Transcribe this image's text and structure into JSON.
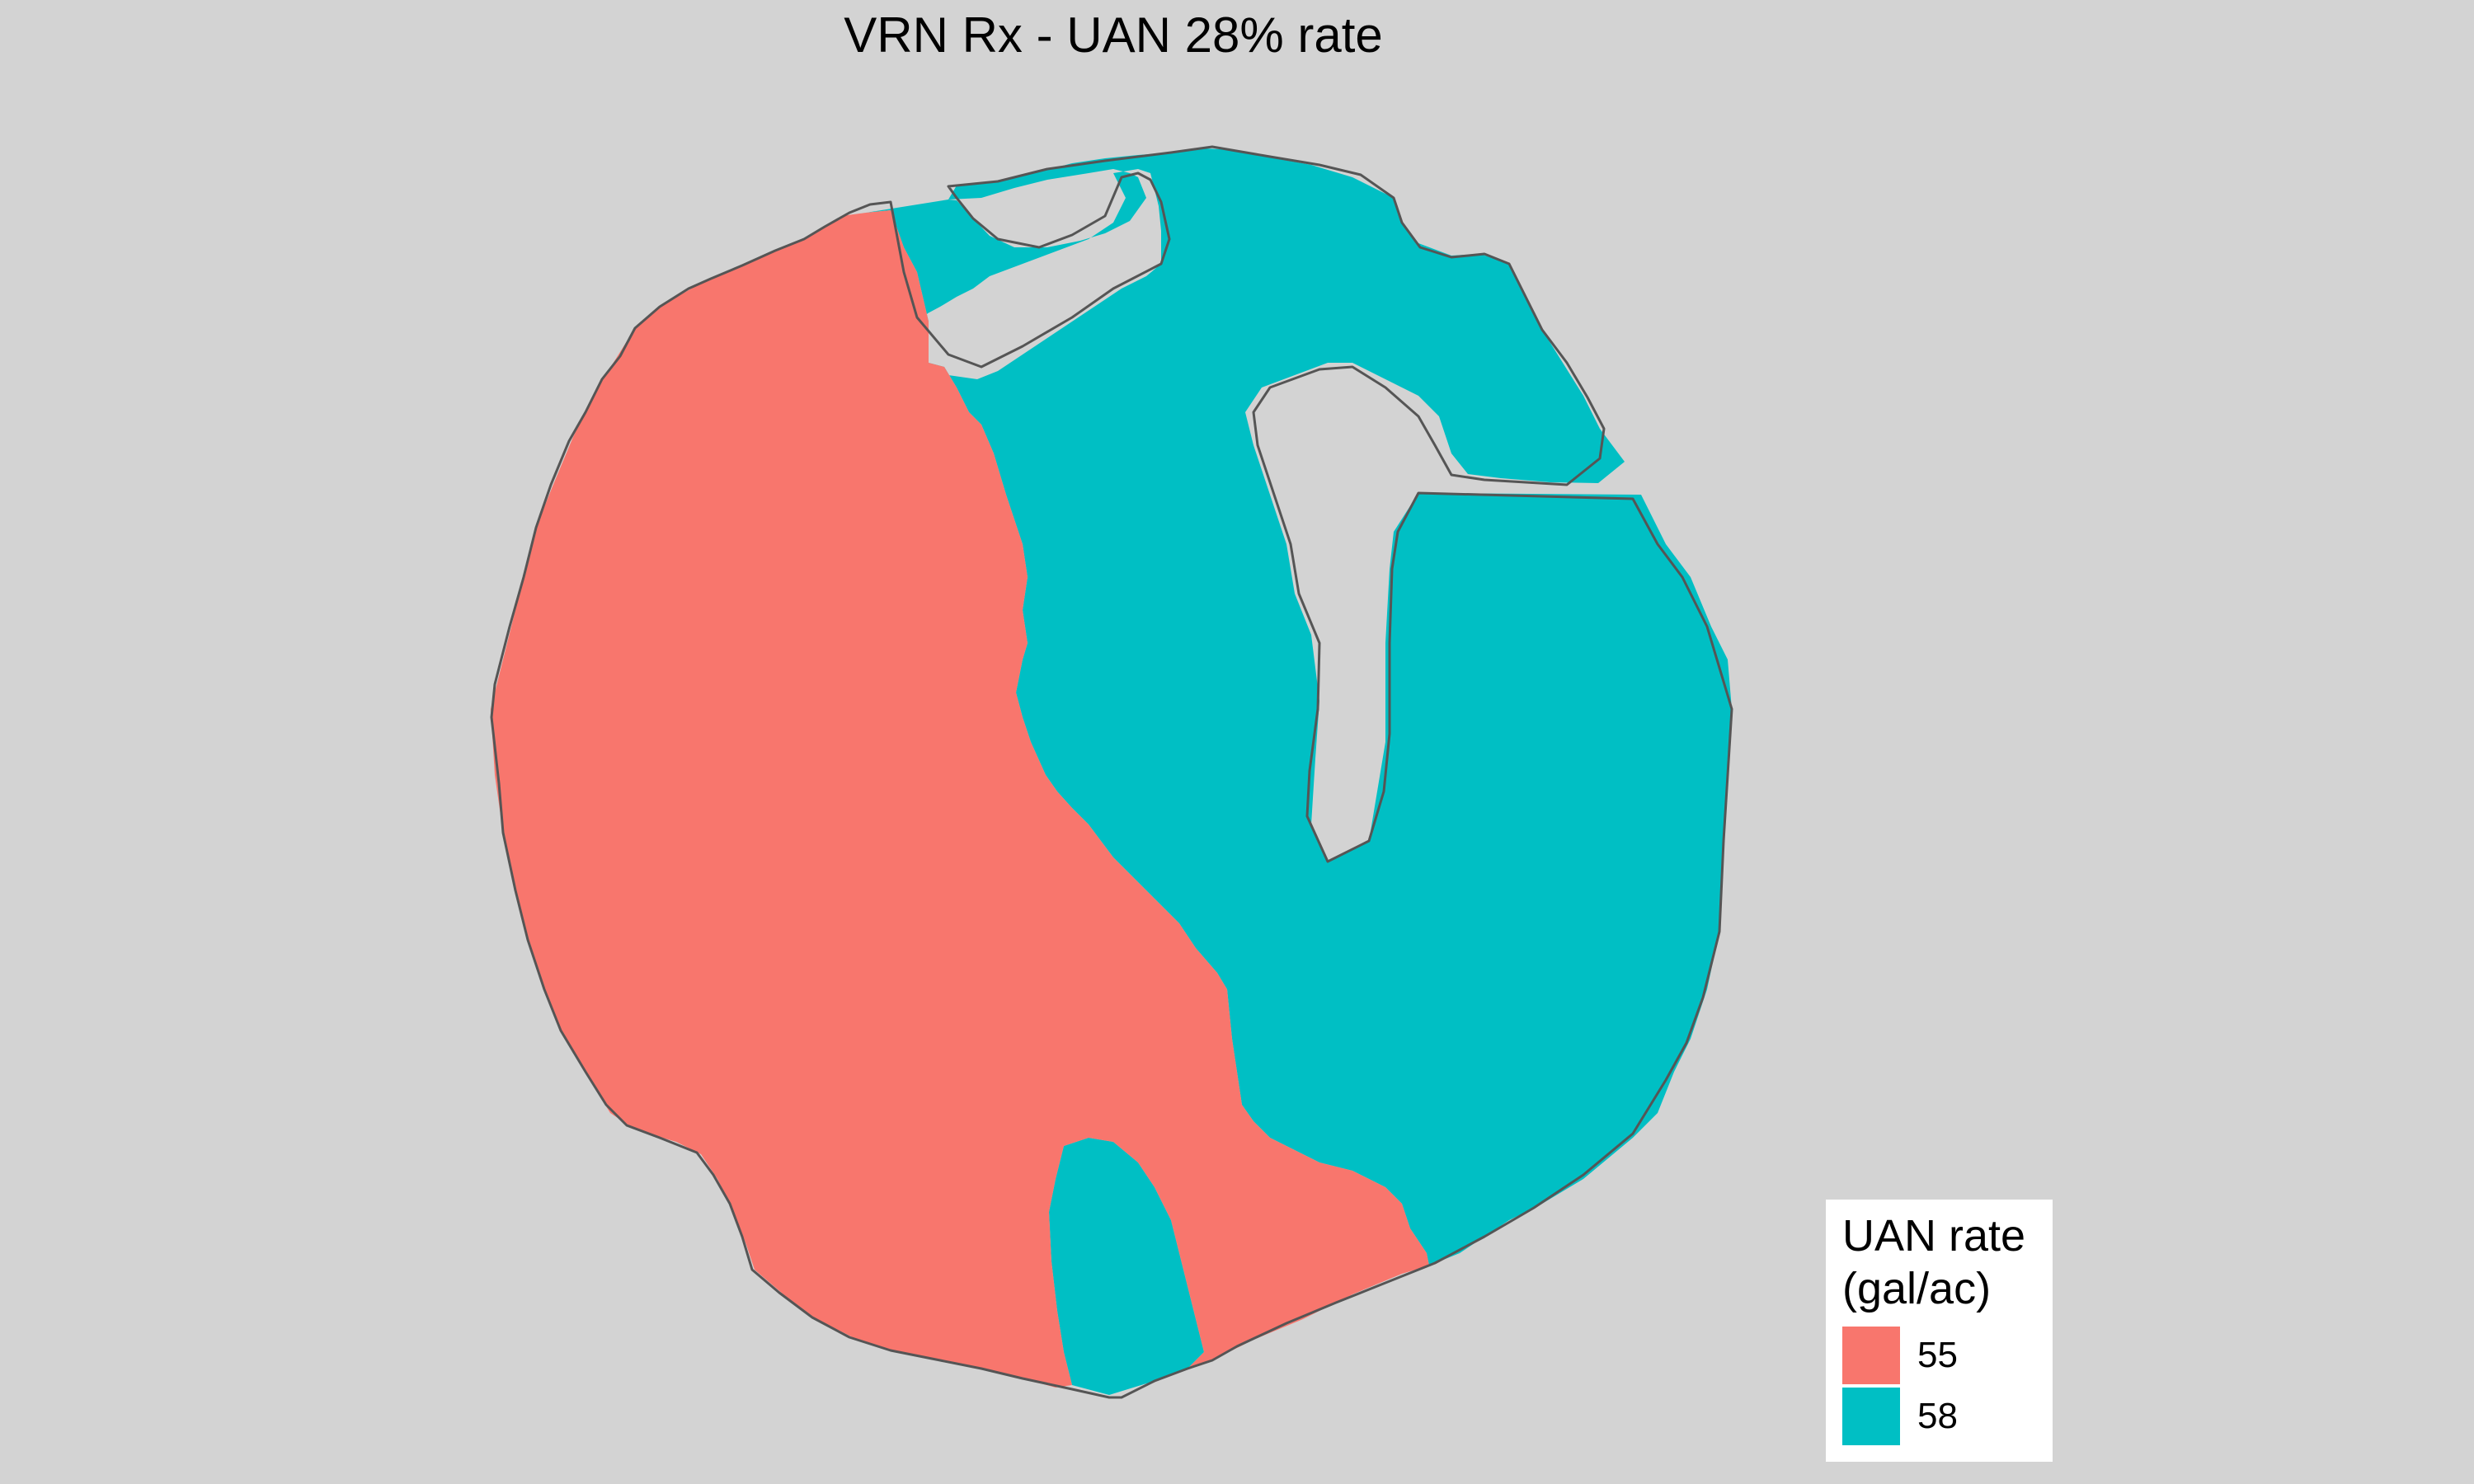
{
  "title": "VRN Rx - UAN 28% rate",
  "colors": {
    "background": "#D3D3D3",
    "rate_55": "#F8766D",
    "rate_58": "#00BFC4",
    "boundary": "#555555"
  },
  "legend": {
    "title_line1": "UAN rate",
    "title_line2": "(gal/ac)",
    "items": [
      {
        "label": "55",
        "color": "#F8766D"
      },
      {
        "label": "58",
        "color": "#00BFC4"
      }
    ]
  },
  "zones": [
    {
      "name": "zone-55",
      "rate": "55"
    },
    {
      "name": "zone-58",
      "rate": "58"
    }
  ]
}
